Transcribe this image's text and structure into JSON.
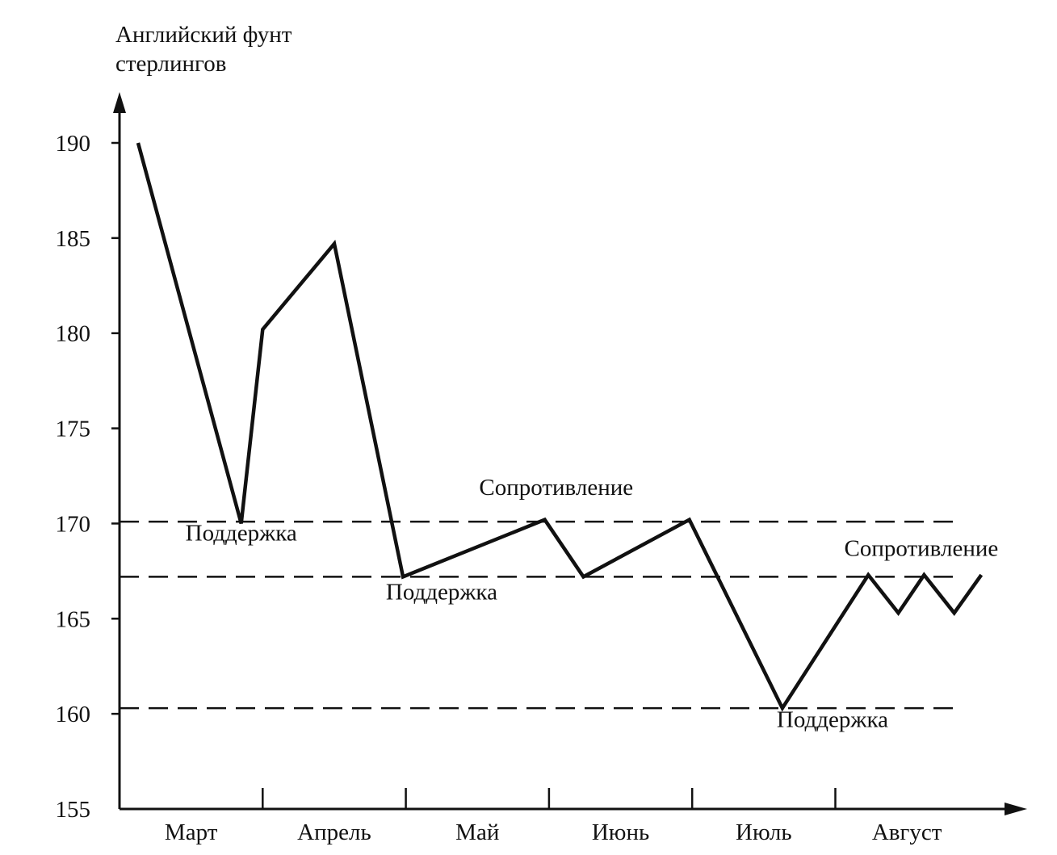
{
  "chart_data": {
    "type": "line",
    "ylabel": "Английский фунт стерлингов",
    "ylabel_lines": [
      "Английский фунт",
      "стерлингов"
    ],
    "xlabel": "",
    "ylim": [
      155,
      192
    ],
    "yticks": [
      155,
      160,
      165,
      170,
      175,
      180,
      185,
      190
    ],
    "categories": [
      "Март",
      "Апрель",
      "Май",
      "Июнь",
      "Июль",
      "Август"
    ],
    "month_boundaries": [
      1,
      2,
      3,
      4,
      5
    ],
    "series": [
      {
        "points": [
          {
            "x": 0.13,
            "y": 190.0
          },
          {
            "x": 0.85,
            "y": 170.0
          },
          {
            "x": 1.0,
            "y": 180.2
          },
          {
            "x": 1.5,
            "y": 184.7
          },
          {
            "x": 1.98,
            "y": 167.2
          },
          {
            "x": 2.97,
            "y": 170.2
          },
          {
            "x": 3.24,
            "y": 167.2
          },
          {
            "x": 3.98,
            "y": 170.2
          },
          {
            "x": 4.63,
            "y": 160.3
          },
          {
            "x": 5.23,
            "y": 167.3
          },
          {
            "x": 5.44,
            "y": 165.3
          },
          {
            "x": 5.62,
            "y": 167.3
          },
          {
            "x": 5.83,
            "y": 165.3
          },
          {
            "x": 6.02,
            "y": 167.3
          }
        ]
      }
    ],
    "reference_lines": [
      {
        "y": 170.1,
        "x_start": 0.0,
        "x_end": 5.85
      },
      {
        "y": 167.2,
        "x_start": 0.0,
        "x_end": 5.85
      },
      {
        "y": 160.3,
        "x_start": 0.0,
        "x_end": 5.85
      }
    ],
    "annotations": [
      {
        "text": "Поддержка",
        "x": 0.85,
        "y": 169.1
      },
      {
        "text": "Поддержка",
        "x": 2.25,
        "y": 166.0
      },
      {
        "text": "Сопротивление",
        "x": 3.05,
        "y": 171.5
      },
      {
        "text": "Сопротивление",
        "x": 5.6,
        "y": 168.3
      },
      {
        "text": "Поддержка",
        "x": 4.98,
        "y": 159.3
      }
    ],
    "grid": false,
    "legend": "none"
  }
}
